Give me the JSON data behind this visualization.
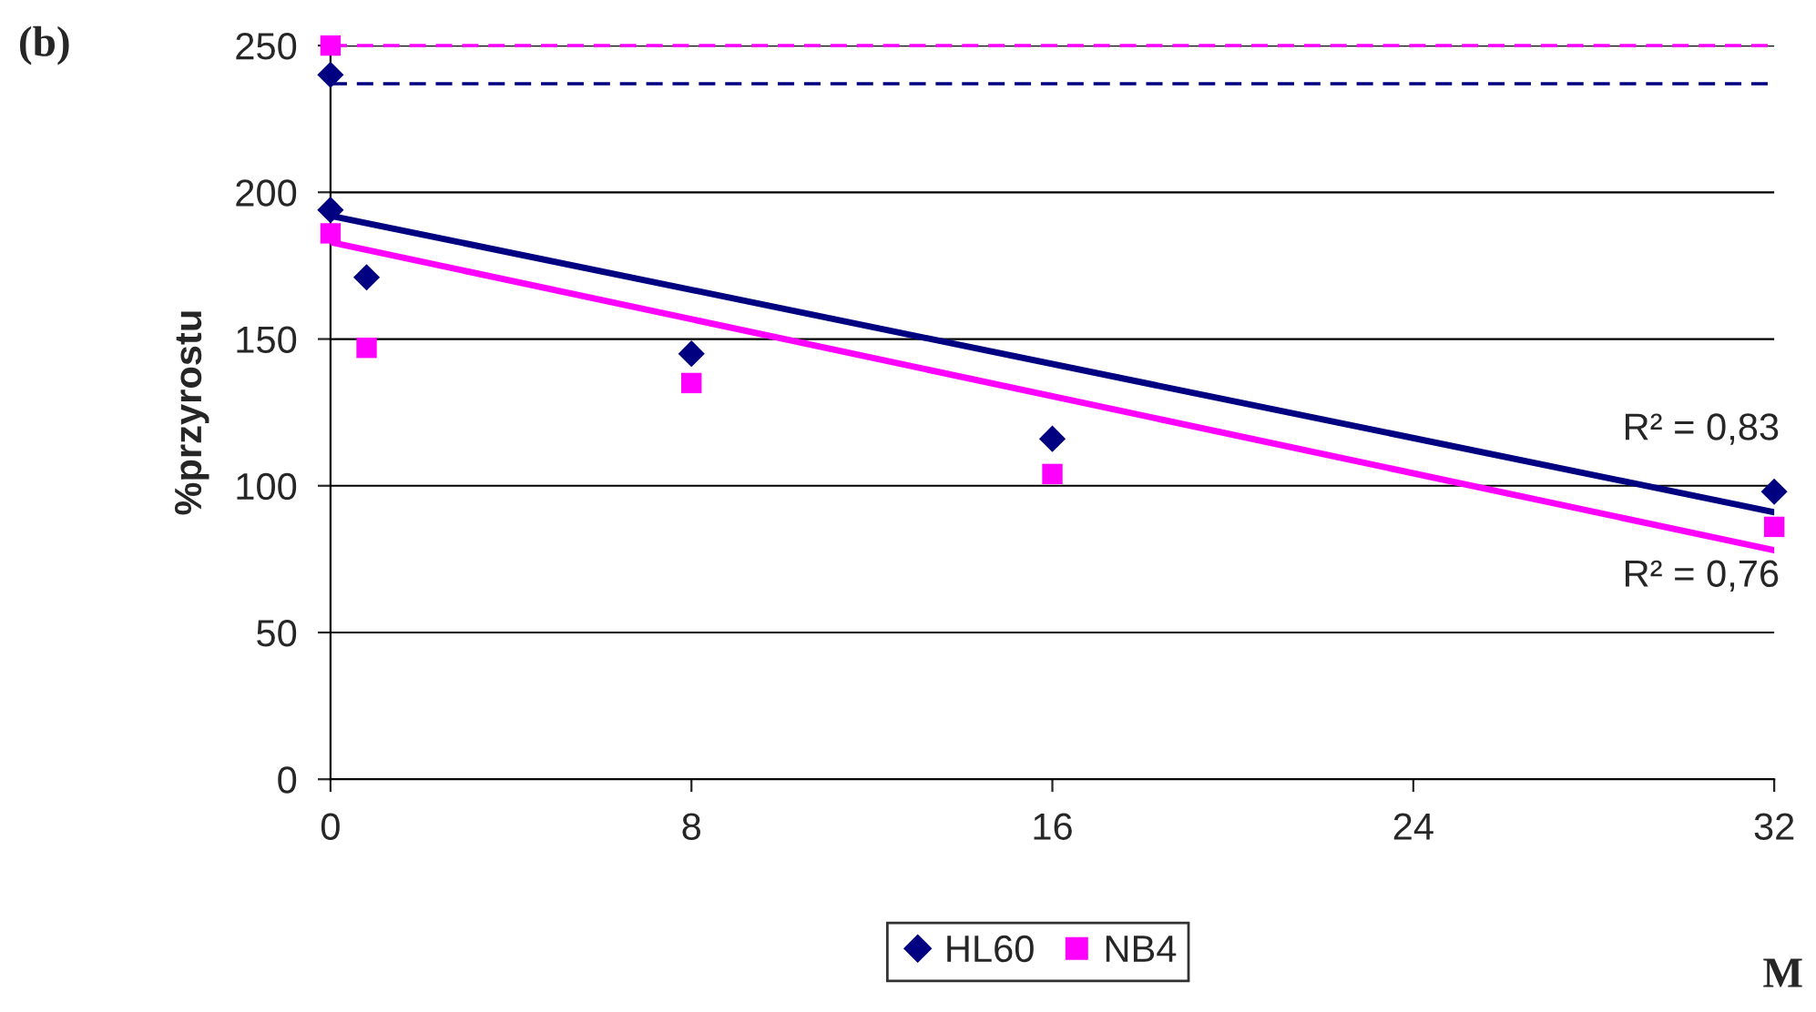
{
  "chart_data": {
    "type": "scatter",
    "ylabel": "%przyrostu",
    "xlim": [
      0,
      32
    ],
    "xticks": [
      0,
      8,
      16,
      24,
      32
    ],
    "ylim": [
      0,
      250
    ],
    "yticks": [
      0,
      50,
      100,
      150,
      200,
      250
    ],
    "grid": "y",
    "legend": "bottom",
    "series": [
      {
        "name": "HL60",
        "color": "#000080",
        "marker": "diamond",
        "x": [
          0,
          0,
          0.8,
          8,
          16,
          32
        ],
        "values": [
          240,
          194,
          171,
          145,
          116,
          98
        ]
      },
      {
        "name": "NB4",
        "color": "#ff00ff",
        "marker": "square",
        "x": [
          0,
          0,
          0.8,
          8,
          16,
          32
        ],
        "values": [
          250,
          186,
          147,
          135,
          104,
          86
        ]
      },
      {
        "type": "line",
        "color": "#000080",
        "marker": "none",
        "x": [
          0,
          32
        ],
        "values": [
          192,
          91
        ]
      },
      {
        "type": "line",
        "color": "#ff00ff",
        "marker": "none",
        "x": [
          0,
          32
        ],
        "values": [
          183,
          78
        ]
      }
    ],
    "ref_lines": [
      {
        "axis": "y",
        "value": 250,
        "color": "#ff00ff",
        "line_style": "dashed"
      },
      {
        "axis": "y",
        "value": 237,
        "color": "#000080",
        "line_style": "dashed"
      }
    ],
    "annotations": [
      "(b)",
      "M",
      "R² = 0,83",
      "R² = 0,76"
    ]
  }
}
